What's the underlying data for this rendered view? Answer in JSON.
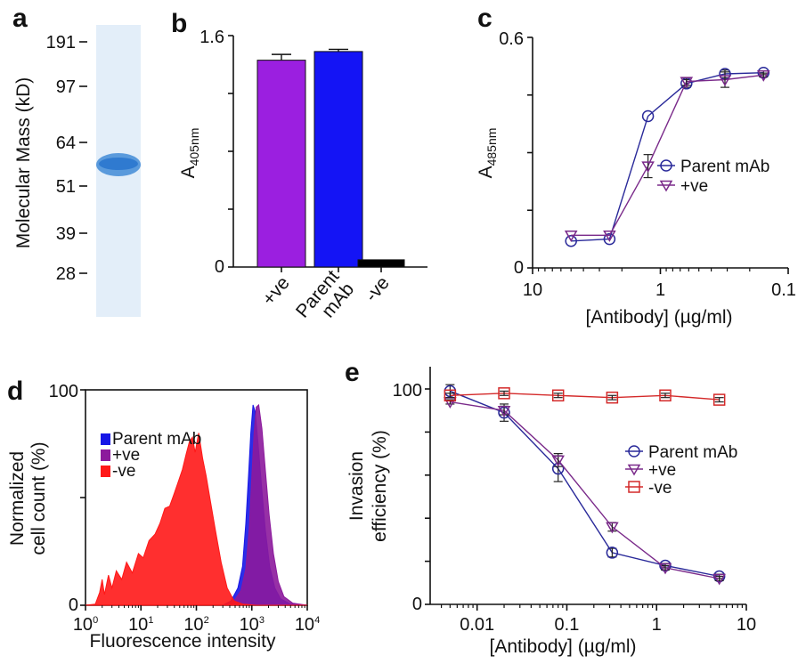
{
  "panel_labels": [
    "a",
    "b",
    "c",
    "d",
    "e"
  ],
  "chart_data": [
    {
      "panel": "a",
      "type": "gel",
      "ylabel": "Molecular Mass (kD)",
      "ladder": [
        191,
        97,
        64,
        51,
        39,
        28
      ],
      "band_kD": 56
    },
    {
      "panel": "b",
      "type": "bar",
      "ylabel": "A",
      "ylabel_sub": "405nm",
      "ylim": [
        0,
        1.6
      ],
      "ytick_labels": [
        "0",
        "1.6"
      ],
      "categories": [
        "+ve",
        "Parent mAb",
        "-ve"
      ],
      "category_lines": [
        [
          "+ve"
        ],
        [
          "Parent",
          "mAb"
        ],
        [
          "-ve"
        ]
      ],
      "values": [
        1.43,
        1.49,
        0.05
      ],
      "errors": [
        0.04,
        0.015,
        0
      ],
      "colors": [
        "#9b1fe0",
        "#1414f5",
        "#000000"
      ]
    },
    {
      "panel": "c",
      "type": "line",
      "xscale": "log",
      "xreversed": true,
      "xlim": [
        10,
        0.1
      ],
      "ylim": [
        0,
        0.6
      ],
      "xtick_labels": [
        "10",
        "1",
        "0.1"
      ],
      "ytick_labels": [
        "0",
        "0.6"
      ],
      "xlabel": "[Antibody] (µg/ml)",
      "ylabel": "A",
      "ylabel_sub": "485nm",
      "legend_position": "right",
      "series": [
        {
          "name": "Parent mAb",
          "marker": "circle",
          "color": "#2a2a9a",
          "x": [
            5,
            2.5,
            1.25,
            0.625,
            0.3125,
            0.156
          ],
          "y": [
            0.07,
            0.075,
            0.395,
            0.48,
            0.505,
            0.508
          ],
          "err": [
            0,
            0,
            0,
            0.01,
            0.01,
            0.005
          ]
        },
        {
          "name": "+ve",
          "marker": "triangle-down",
          "color": "#7a2a8a",
          "x": [
            5,
            2.5,
            1.25,
            0.625,
            0.3125,
            0.156
          ],
          "y": [
            0.085,
            0.085,
            0.265,
            0.485,
            0.49,
            0.502
          ],
          "err": [
            0,
            0,
            0.03,
            0.01,
            0.02,
            0.005
          ]
        }
      ]
    },
    {
      "panel": "d",
      "type": "area",
      "xscale": "log",
      "xlim": [
        1,
        10000
      ],
      "ylim": [
        0,
        100
      ],
      "xlabel": "Fluorescence intensity",
      "ylabel_lines": [
        "Normalized",
        "cell count (%)"
      ],
      "ytick_labels": [
        "0",
        "100"
      ],
      "xtick_base": "10",
      "xtick_exponents": [
        "0",
        "1",
        "2",
        "3",
        "4"
      ],
      "legend_position": "top-left",
      "series": [
        {
          "name": "Parent mAb",
          "color": "#1616e6",
          "x": [
            300,
            420,
            560,
            680,
            780,
            880,
            960,
            1050,
            1150,
            1300,
            1500,
            1750,
            2100,
            2600,
            3300,
            5000,
            10000
          ],
          "y": [
            0,
            2,
            8,
            18,
            38,
            62,
            80,
            93,
            90,
            75,
            55,
            35,
            18,
            8,
            3,
            0.5,
            0
          ]
        },
        {
          "name": "+ve",
          "color": "#8c1a9c",
          "x": [
            350,
            480,
            640,
            780,
            900,
            1000,
            1100,
            1200,
            1330,
            1520,
            1750,
            2050,
            2450,
            3000,
            3800,
            5500,
            10000
          ],
          "y": [
            0,
            2,
            7,
            17,
            36,
            60,
            80,
            92,
            93,
            82,
            63,
            42,
            24,
            11,
            4,
            1,
            0
          ]
        },
        {
          "name": "-ve",
          "color": "#ff1818",
          "x": [
            1,
            1.5,
            1.8,
            2,
            2.2,
            2.6,
            3,
            3.6,
            4.5,
            5.5,
            7,
            9,
            11,
            14,
            18,
            22,
            27,
            33,
            40,
            48,
            56,
            65,
            75,
            85,
            95,
            110,
            130,
            150,
            180,
            220,
            280,
            360,
            480,
            700,
            1200,
            10000
          ],
          "y": [
            0,
            0.5,
            6,
            12,
            5,
            14,
            8,
            16,
            12,
            20,
            15,
            24,
            22,
            30,
            33,
            38,
            45,
            46,
            52,
            58,
            63,
            70,
            76,
            78,
            71,
            80,
            68,
            60,
            48,
            35,
            20,
            8,
            2,
            0.5,
            0,
            0
          ]
        }
      ]
    },
    {
      "panel": "e",
      "type": "line",
      "xscale": "log",
      "xlim": [
        0.003,
        10
      ],
      "ylim": [
        0,
        100
      ],
      "xtick_labels": [
        "0.01",
        "0.1",
        "1",
        "10"
      ],
      "ytick_labels": [
        "0",
        "100"
      ],
      "xlabel": "[Antibody] (µg/ml)",
      "ylabel_lines": [
        "Invasion",
        "efficiency (%)"
      ],
      "legend_position": "right",
      "series": [
        {
          "name": "Parent mAb",
          "marker": "circle",
          "color": "#2a2a9a",
          "x": [
            0.005,
            0.02,
            0.08,
            0.32,
            1.25,
            5
          ],
          "y": [
            99,
            89,
            63,
            24,
            18,
            13
          ],
          "err": [
            3,
            4,
            6,
            2,
            1,
            1
          ]
        },
        {
          "name": "+ve",
          "marker": "triangle-down",
          "color": "#7a2a8a",
          "x": [
            0.005,
            0.02,
            0.08,
            0.32,
            1.25,
            5
          ],
          "y": [
            94,
            90,
            67,
            36,
            17,
            12
          ],
          "err": [
            1,
            2,
            3,
            2,
            1,
            1
          ]
        },
        {
          "name": "-ve",
          "marker": "square",
          "color": "#d42a2a",
          "x": [
            0.005,
            0.02,
            0.08,
            0.32,
            1.25,
            5
          ],
          "y": [
            97,
            98,
            97,
            96,
            97,
            95
          ],
          "err": [
            1,
            1,
            1,
            1,
            1,
            1
          ]
        }
      ]
    }
  ]
}
